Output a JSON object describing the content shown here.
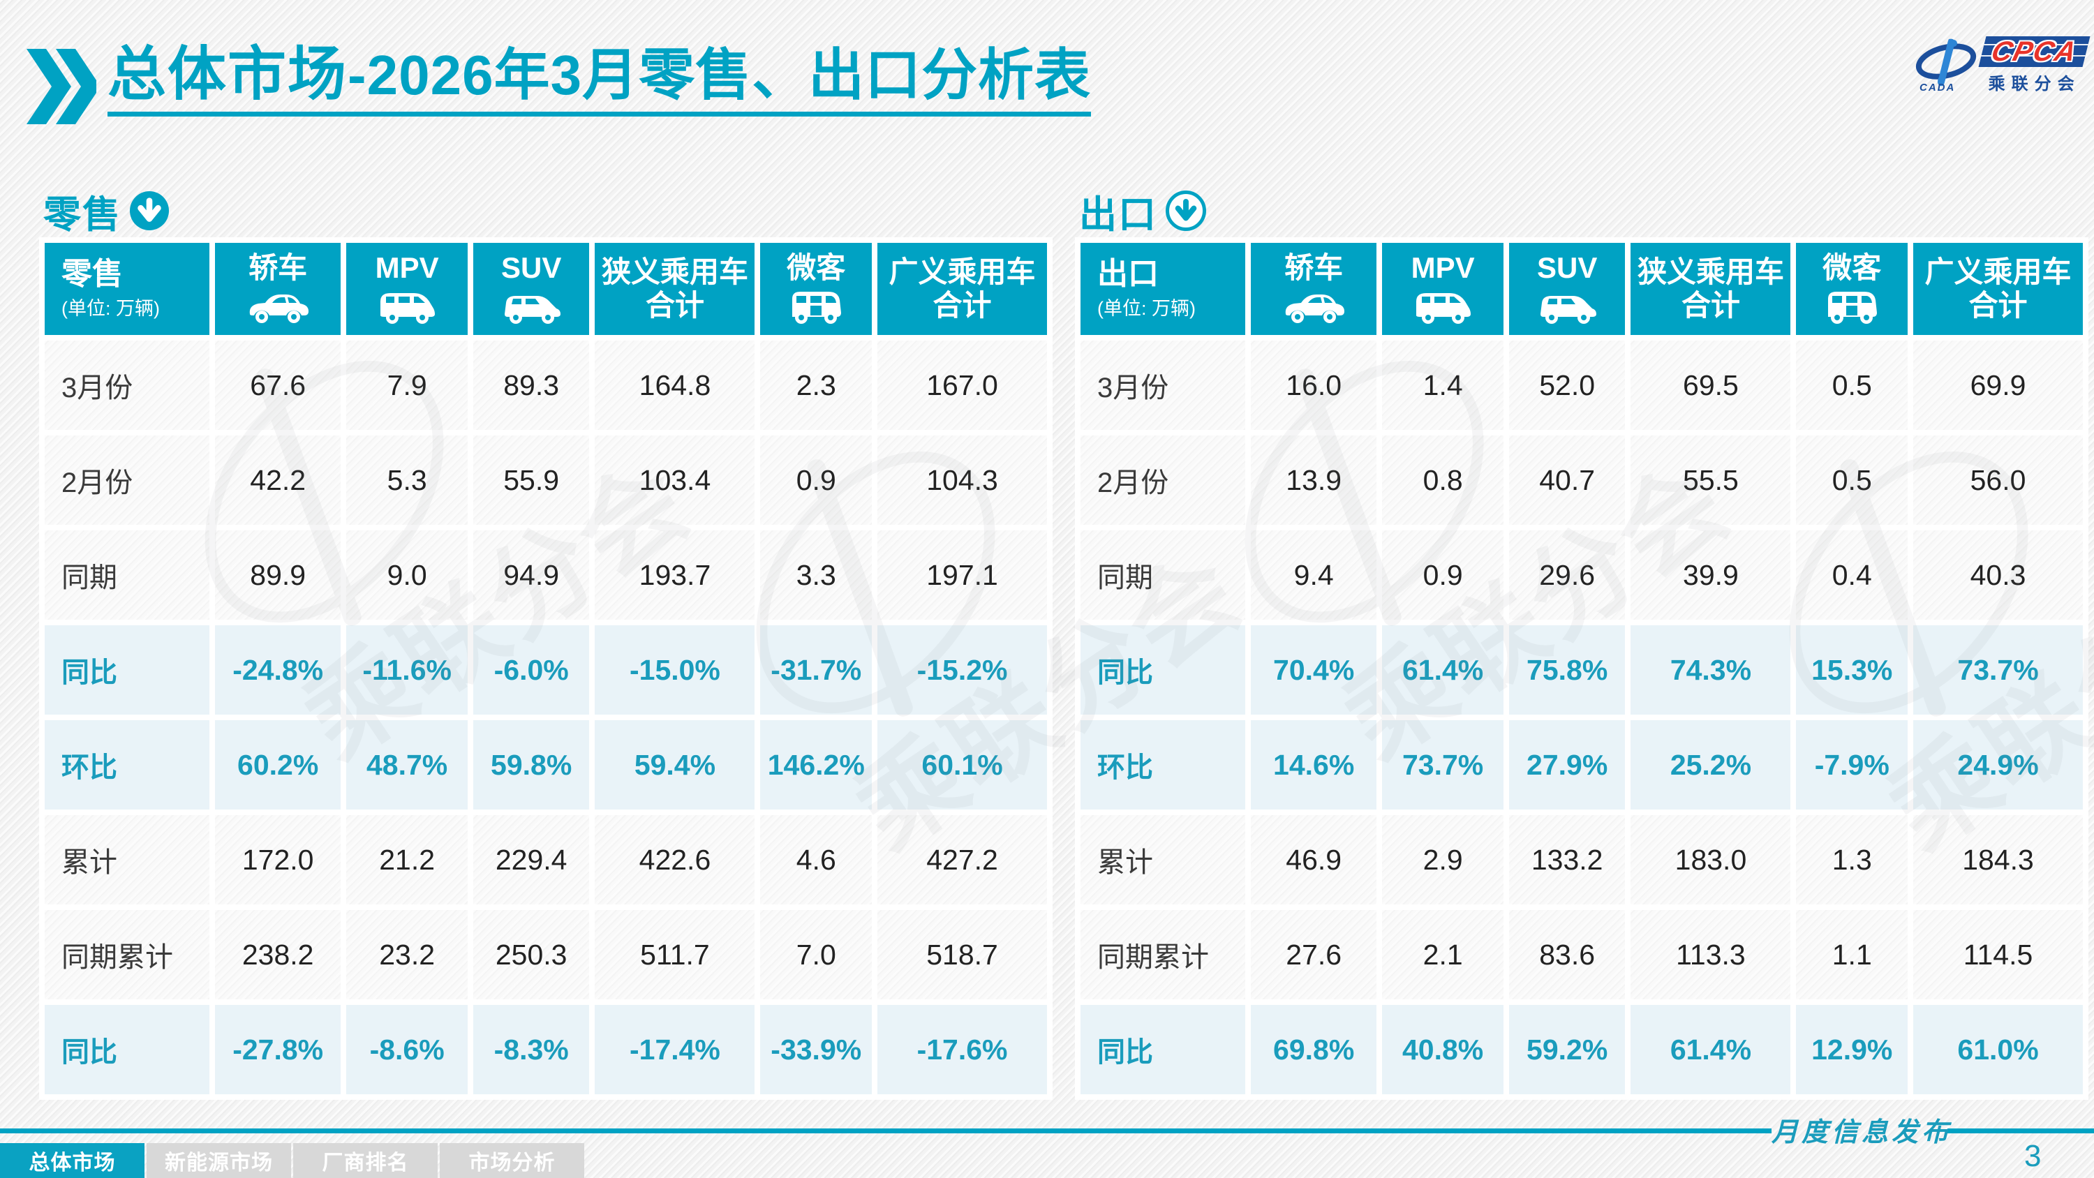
{
  "page": {
    "title_bold": "总体市场",
    "title_rest": "-2026年3月零售、出口分析表",
    "footer_brand": "月度信息发布",
    "page_number": "3",
    "accent_color": "#00a2c3",
    "highlight_text_color": "#1a9cbc",
    "highlight_row_bg": "#e9f3f8"
  },
  "logo": {
    "cpca": "CPCA",
    "cada": "CADA",
    "subtitle": "乘联分会"
  },
  "watermark_text": "乘联分会",
  "columns": [
    {
      "label": "轿车",
      "icon": "sedan-icon"
    },
    {
      "label": "MPV",
      "icon": "mpv-icon"
    },
    {
      "label": "SUV",
      "icon": "suv-icon"
    },
    {
      "label": "狭义乘用车",
      "label2": "合计"
    },
    {
      "label": "微客",
      "icon": "microvan-icon"
    },
    {
      "label": "广义乘用车",
      "label2": "合计"
    }
  ],
  "tables": [
    {
      "section_title": "零售",
      "header_label": "零售",
      "unit": "(单位: 万辆)",
      "arrow_icon": "solid-circle-down-arrow-icon",
      "rows": [
        {
          "label": "3月份",
          "type": "normal",
          "values": [
            "67.6",
            "7.9",
            "89.3",
            "164.8",
            "2.3",
            "167.0"
          ]
        },
        {
          "label": "2月份",
          "type": "normal",
          "values": [
            "42.2",
            "5.3",
            "55.9",
            "103.4",
            "0.9",
            "104.3"
          ]
        },
        {
          "label": "同期",
          "type": "normal",
          "values": [
            "89.9",
            "9.0",
            "94.9",
            "193.7",
            "3.3",
            "197.1"
          ]
        },
        {
          "label": "同比",
          "type": "highlight",
          "values": [
            "-24.8%",
            "-11.6%",
            "-6.0%",
            "-15.0%",
            "-31.7%",
            "-15.2%"
          ]
        },
        {
          "label": "环比",
          "type": "highlight",
          "values": [
            "60.2%",
            "48.7%",
            "59.8%",
            "59.4%",
            "146.2%",
            "60.1%"
          ]
        },
        {
          "label": "累计",
          "type": "normal",
          "values": [
            "172.0",
            "21.2",
            "229.4",
            "422.6",
            "4.6",
            "427.2"
          ]
        },
        {
          "label": "同期累计",
          "type": "normal",
          "values": [
            "238.2",
            "23.2",
            "250.3",
            "511.7",
            "7.0",
            "518.7"
          ]
        },
        {
          "label": "同比",
          "type": "highlight",
          "values": [
            "-27.8%",
            "-8.6%",
            "-8.3%",
            "-17.4%",
            "-33.9%",
            "-17.6%"
          ]
        }
      ]
    },
    {
      "section_title": "出口",
      "header_label": "出口",
      "unit": "(单位: 万辆)",
      "arrow_icon": "ring-circle-down-arrow-icon",
      "rows": [
        {
          "label": "3月份",
          "type": "normal",
          "values": [
            "16.0",
            "1.4",
            "52.0",
            "69.5",
            "0.5",
            "69.9"
          ]
        },
        {
          "label": "2月份",
          "type": "normal",
          "values": [
            "13.9",
            "0.8",
            "40.7",
            "55.5",
            "0.5",
            "56.0"
          ]
        },
        {
          "label": "同期",
          "type": "normal",
          "values": [
            "9.4",
            "0.9",
            "29.6",
            "39.9",
            "0.4",
            "40.3"
          ]
        },
        {
          "label": "同比",
          "type": "highlight",
          "values": [
            "70.4%",
            "61.4%",
            "75.8%",
            "74.3%",
            "15.3%",
            "73.7%"
          ]
        },
        {
          "label": "环比",
          "type": "highlight",
          "values": [
            "14.6%",
            "73.7%",
            "27.9%",
            "25.2%",
            "-7.9%",
            "24.9%"
          ]
        },
        {
          "label": "累计",
          "type": "normal",
          "values": [
            "46.9",
            "2.9",
            "133.2",
            "183.0",
            "1.3",
            "184.3"
          ]
        },
        {
          "label": "同期累计",
          "type": "normal",
          "values": [
            "27.6",
            "2.1",
            "83.6",
            "113.3",
            "1.1",
            "114.5"
          ]
        },
        {
          "label": "同比",
          "type": "highlight",
          "values": [
            "69.8%",
            "40.8%",
            "59.2%",
            "61.4%",
            "12.9%",
            "61.0%"
          ]
        }
      ]
    }
  ],
  "nav": {
    "tabs": [
      {
        "label": "总体市场",
        "active": true
      },
      {
        "label": "新能源市场",
        "active": false
      },
      {
        "label": "厂商排名",
        "active": false
      },
      {
        "label": "市场分析",
        "active": false
      }
    ]
  }
}
